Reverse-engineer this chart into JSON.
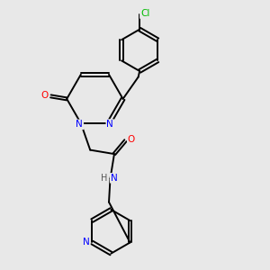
{
  "background_color": "#e8e8e8",
  "bond_color": "#000000",
  "atom_colors": {
    "N": "#0000ff",
    "O": "#ff0000",
    "Cl": "#00bb00",
    "C": "#000000",
    "H": "#555555"
  },
  "figsize": [
    3.0,
    3.0
  ],
  "dpi": 100
}
